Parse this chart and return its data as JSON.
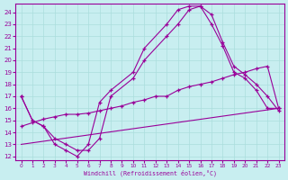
{
  "xlabel": "Windchill (Refroidissement éolien,°C)",
  "bg_color": "#c8eef0",
  "line_color": "#990099",
  "xlim": [
    -0.5,
    23.5
  ],
  "ylim": [
    11.7,
    24.7
  ],
  "yticks": [
    12,
    13,
    14,
    15,
    16,
    17,
    18,
    19,
    20,
    21,
    22,
    23,
    24
  ],
  "xticks": [
    0,
    1,
    2,
    3,
    4,
    5,
    6,
    7,
    8,
    9,
    10,
    11,
    12,
    13,
    14,
    15,
    16,
    17,
    18,
    19,
    20,
    21,
    22,
    23
  ],
  "series": [
    {
      "x": [
        0,
        1,
        2,
        3,
        4,
        5,
        6,
        7,
        8,
        10,
        11,
        13,
        14,
        15,
        16,
        17,
        18,
        19,
        20,
        21,
        22,
        23
      ],
      "y": [
        17,
        15,
        14.5,
        13,
        12.5,
        12,
        13,
        16.5,
        17.5,
        19,
        21,
        23,
        24.2,
        24.5,
        24.5,
        23,
        21.2,
        19,
        18.5,
        17.5,
        16,
        16
      ],
      "marker": true
    },
    {
      "x": [
        0,
        1,
        2,
        3,
        4,
        5,
        6,
        7,
        8,
        10,
        11,
        13,
        14,
        15,
        16,
        17,
        18,
        19,
        20,
        21,
        22,
        23
      ],
      "y": [
        17,
        15,
        14.5,
        13.5,
        13,
        12.5,
        12.5,
        13.5,
        17,
        18.5,
        20,
        22,
        23,
        24.2,
        24.5,
        23.8,
        21.5,
        19.5,
        18.8,
        18,
        17,
        15.8
      ],
      "marker": true
    },
    {
      "x": [
        0,
        1,
        2,
        3,
        4,
        5,
        6,
        7,
        8,
        9,
        10,
        11,
        12,
        13,
        14,
        15,
        16,
        17,
        18,
        19,
        20,
        21,
        22,
        23
      ],
      "y": [
        14.5,
        14.8,
        15.1,
        15.3,
        15.5,
        15.5,
        15.6,
        15.8,
        16,
        16.2,
        16.5,
        16.7,
        17,
        17,
        17.5,
        17.8,
        18,
        18.2,
        18.5,
        18.8,
        19,
        19.3,
        19.5,
        16
      ],
      "marker": true
    },
    {
      "x": [
        0,
        23
      ],
      "y": [
        13,
        16
      ],
      "marker": false
    }
  ]
}
